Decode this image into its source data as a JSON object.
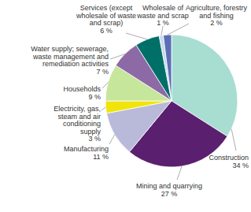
{
  "chart_data": {
    "type": "pie",
    "categories": [
      "Construction",
      "Mining and quarrying",
      "Manufacturing",
      "Electricity, gas, steam and air conditioning supply",
      "Households",
      "Water supply; sewerage, waste management and remediation activities",
      "Services (except wholesale of waste and scrap)",
      "Wholesale of waste and scrap",
      "Agriculture, forestry and fishing"
    ],
    "values": [
      34,
      27,
      11,
      3,
      9,
      7,
      6,
      1,
      2
    ],
    "value_labels": [
      "34 %",
      "27 %",
      "11 %",
      "3 %",
      "9 %",
      "7 %",
      "6 %",
      "1 %",
      "2 %"
    ],
    "colors": [
      "#a8ddd2",
      "#5a1f6e",
      "#b9b9da",
      "#f0e40a",
      "#c6e69c",
      "#8d6aa6",
      "#006f68",
      "#c9d9e8",
      "#5b6fb6"
    ],
    "data_labels": true
  }
}
